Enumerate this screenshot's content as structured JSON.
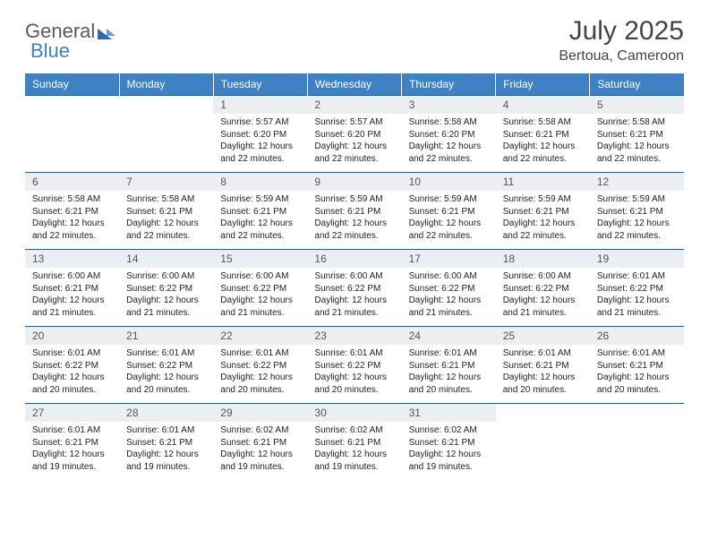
{
  "brand": {
    "part1": "General",
    "part2": "Blue"
  },
  "title": "July 2025",
  "location": "Bertoua, Cameroon",
  "colors": {
    "header_bg": "#3e82c4",
    "header_text": "#ffffff",
    "daynum_bg": "#eceff1",
    "border": "#2a5a8a",
    "title_color": "#444444",
    "body_text": "#222222"
  },
  "weekdays": [
    "Sunday",
    "Monday",
    "Tuesday",
    "Wednesday",
    "Thursday",
    "Friday",
    "Saturday"
  ],
  "leading_blanks": 2,
  "days": [
    {
      "n": 1,
      "sunrise": "5:57 AM",
      "sunset": "6:20 PM",
      "dl": "12 hours and 22 minutes."
    },
    {
      "n": 2,
      "sunrise": "5:57 AM",
      "sunset": "6:20 PM",
      "dl": "12 hours and 22 minutes."
    },
    {
      "n": 3,
      "sunrise": "5:58 AM",
      "sunset": "6:20 PM",
      "dl": "12 hours and 22 minutes."
    },
    {
      "n": 4,
      "sunrise": "5:58 AM",
      "sunset": "6:21 PM",
      "dl": "12 hours and 22 minutes."
    },
    {
      "n": 5,
      "sunrise": "5:58 AM",
      "sunset": "6:21 PM",
      "dl": "12 hours and 22 minutes."
    },
    {
      "n": 6,
      "sunrise": "5:58 AM",
      "sunset": "6:21 PM",
      "dl": "12 hours and 22 minutes."
    },
    {
      "n": 7,
      "sunrise": "5:58 AM",
      "sunset": "6:21 PM",
      "dl": "12 hours and 22 minutes."
    },
    {
      "n": 8,
      "sunrise": "5:59 AM",
      "sunset": "6:21 PM",
      "dl": "12 hours and 22 minutes."
    },
    {
      "n": 9,
      "sunrise": "5:59 AM",
      "sunset": "6:21 PM",
      "dl": "12 hours and 22 minutes."
    },
    {
      "n": 10,
      "sunrise": "5:59 AM",
      "sunset": "6:21 PM",
      "dl": "12 hours and 22 minutes."
    },
    {
      "n": 11,
      "sunrise": "5:59 AM",
      "sunset": "6:21 PM",
      "dl": "12 hours and 22 minutes."
    },
    {
      "n": 12,
      "sunrise": "5:59 AM",
      "sunset": "6:21 PM",
      "dl": "12 hours and 22 minutes."
    },
    {
      "n": 13,
      "sunrise": "6:00 AM",
      "sunset": "6:21 PM",
      "dl": "12 hours and 21 minutes."
    },
    {
      "n": 14,
      "sunrise": "6:00 AM",
      "sunset": "6:22 PM",
      "dl": "12 hours and 21 minutes."
    },
    {
      "n": 15,
      "sunrise": "6:00 AM",
      "sunset": "6:22 PM",
      "dl": "12 hours and 21 minutes."
    },
    {
      "n": 16,
      "sunrise": "6:00 AM",
      "sunset": "6:22 PM",
      "dl": "12 hours and 21 minutes."
    },
    {
      "n": 17,
      "sunrise": "6:00 AM",
      "sunset": "6:22 PM",
      "dl": "12 hours and 21 minutes."
    },
    {
      "n": 18,
      "sunrise": "6:00 AM",
      "sunset": "6:22 PM",
      "dl": "12 hours and 21 minutes."
    },
    {
      "n": 19,
      "sunrise": "6:01 AM",
      "sunset": "6:22 PM",
      "dl": "12 hours and 21 minutes."
    },
    {
      "n": 20,
      "sunrise": "6:01 AM",
      "sunset": "6:22 PM",
      "dl": "12 hours and 20 minutes."
    },
    {
      "n": 21,
      "sunrise": "6:01 AM",
      "sunset": "6:22 PM",
      "dl": "12 hours and 20 minutes."
    },
    {
      "n": 22,
      "sunrise": "6:01 AM",
      "sunset": "6:22 PM",
      "dl": "12 hours and 20 minutes."
    },
    {
      "n": 23,
      "sunrise": "6:01 AM",
      "sunset": "6:22 PM",
      "dl": "12 hours and 20 minutes."
    },
    {
      "n": 24,
      "sunrise": "6:01 AM",
      "sunset": "6:21 PM",
      "dl": "12 hours and 20 minutes."
    },
    {
      "n": 25,
      "sunrise": "6:01 AM",
      "sunset": "6:21 PM",
      "dl": "12 hours and 20 minutes."
    },
    {
      "n": 26,
      "sunrise": "6:01 AM",
      "sunset": "6:21 PM",
      "dl": "12 hours and 20 minutes."
    },
    {
      "n": 27,
      "sunrise": "6:01 AM",
      "sunset": "6:21 PM",
      "dl": "12 hours and 19 minutes."
    },
    {
      "n": 28,
      "sunrise": "6:01 AM",
      "sunset": "6:21 PM",
      "dl": "12 hours and 19 minutes."
    },
    {
      "n": 29,
      "sunrise": "6:02 AM",
      "sunset": "6:21 PM",
      "dl": "12 hours and 19 minutes."
    },
    {
      "n": 30,
      "sunrise": "6:02 AM",
      "sunset": "6:21 PM",
      "dl": "12 hours and 19 minutes."
    },
    {
      "n": 31,
      "sunrise": "6:02 AM",
      "sunset": "6:21 PM",
      "dl": "12 hours and 19 minutes."
    }
  ],
  "labels": {
    "sunrise": "Sunrise:",
    "sunset": "Sunset:",
    "daylight": "Daylight:"
  }
}
